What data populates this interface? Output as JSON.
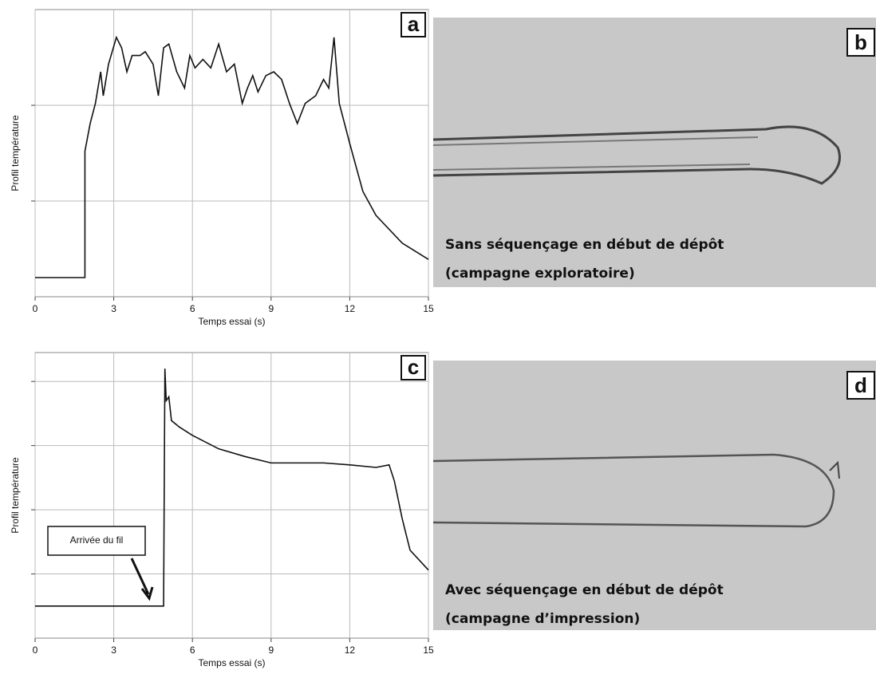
{
  "chart_data": [
    {
      "type": "line",
      "label": "a",
      "xlabel": "Temps essai (s)",
      "ylabel": "Profil température",
      "xlim": [
        0,
        15
      ],
      "xticks": [
        0,
        3,
        6,
        9,
        12,
        15
      ],
      "ylim": [
        0,
        3
      ],
      "ygrid": [
        1,
        2
      ],
      "grid": true,
      "color": "#111111",
      "x": [
        0,
        1.9,
        1.9,
        2.1,
        2.3,
        2.5,
        2.6,
        2.8,
        3.1,
        3.3,
        3.5,
        3.7,
        4.0,
        4.2,
        4.5,
        4.7,
        4.9,
        5.1,
        5.4,
        5.7,
        5.9,
        6.1,
        6.4,
        6.7,
        7.0,
        7.3,
        7.6,
        7.9,
        8.1,
        8.3,
        8.5,
        8.8,
        9.1,
        9.4,
        9.7,
        10.0,
        10.3,
        10.7,
        11.0,
        11.2,
        11.4,
        11.6,
        12.0,
        12.5,
        13.0,
        14.0,
        15
      ],
      "values": [
        0.2,
        0.2,
        1.52,
        1.81,
        2.02,
        2.35,
        2.1,
        2.43,
        2.71,
        2.6,
        2.35,
        2.52,
        2.52,
        2.56,
        2.43,
        2.1,
        2.6,
        2.64,
        2.35,
        2.18,
        2.52,
        2.39,
        2.48,
        2.39,
        2.64,
        2.35,
        2.43,
        2.02,
        2.18,
        2.31,
        2.14,
        2.31,
        2.35,
        2.27,
        2.02,
        1.81,
        2.02,
        2.1,
        2.27,
        2.18,
        2.71,
        2.02,
        1.6,
        1.1,
        0.85,
        0.56,
        0.39
      ]
    },
    {
      "type": "line",
      "label": "c",
      "xlabel": "Temps essai (s)",
      "ylabel": "Profil température",
      "annotation": "Arrivée du fil",
      "xlim": [
        0,
        15
      ],
      "xticks": [
        0,
        3,
        6,
        9,
        12,
        15
      ],
      "ylim": [
        0,
        4.45
      ],
      "ygrid": [
        1,
        2,
        3,
        4
      ],
      "grid": true,
      "color": "#111111",
      "x": [
        0,
        4.9,
        4.95,
        5.0,
        5.1,
        5.2,
        5.5,
        6,
        7,
        8,
        9,
        10,
        11,
        12,
        13,
        13.5,
        13.7,
        14,
        14.3,
        15
      ],
      "values": [
        0.5,
        0.5,
        4.2,
        3.7,
        3.76,
        3.39,
        3.29,
        3.16,
        2.95,
        2.83,
        2.73,
        2.73,
        2.73,
        2.7,
        2.66,
        2.7,
        2.45,
        1.86,
        1.37,
        1.06
      ]
    }
  ],
  "photos": [
    {
      "label": "b",
      "caption": [
        "Sans séquençage en début de dépôt",
        "(campagne exploratoire)"
      ]
    },
    {
      "label": "d",
      "caption": [
        "Avec séquençage en début de dépôt",
        "(campagne d’impression)"
      ]
    }
  ]
}
